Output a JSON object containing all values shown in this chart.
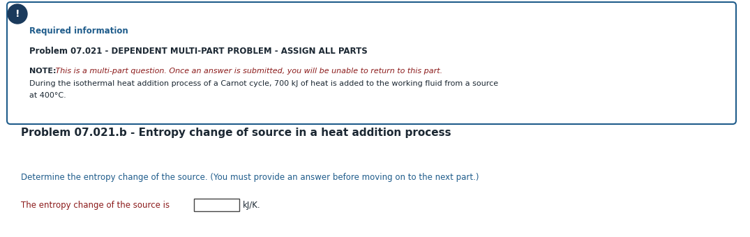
{
  "bg_color": "#ffffff",
  "box_border_color": "#1f5c8b",
  "box_bg_color": "#ffffff",
  "icon_color": "#1a3a5c",
  "icon_text": "!",
  "required_info_label": "Required information",
  "required_info_color": "#1f5c8b",
  "problem_title": "Problem 07.021 - DEPENDENT MULTI-PART PROBLEM - ASSIGN ALL PARTS",
  "problem_title_color": "#1c2833",
  "note_label": "NOTE:",
  "note_label_color": "#1c2833",
  "note_italic_text": " This is a multi-part question. Once an answer is submitted, you will be unable to return to this part.",
  "note_italic_color": "#8b1a1a",
  "body_text_line1": "During the isothermal heat addition process of a Carnot cycle, 700 kJ of heat is added to the working fluid from a source",
  "body_text_line2": "at 400°C.",
  "body_text_color": "#1c2833",
  "section_title": "Problem 07.021.b - Entropy change of source in a heat addition process",
  "section_title_color": "#1c2833",
  "instruction_text": "Determine the entropy change of the source. (You must provide an answer before moving on to the next part.)",
  "instruction_color": "#1f5c8b",
  "answer_label": "The entropy change of the source is",
  "answer_label_color": "#8b1a1a",
  "answer_unit": "kJ/K.",
  "answer_unit_color": "#1c2833",
  "fig_w": 10.75,
  "fig_h": 3.4,
  "dpi": 100
}
